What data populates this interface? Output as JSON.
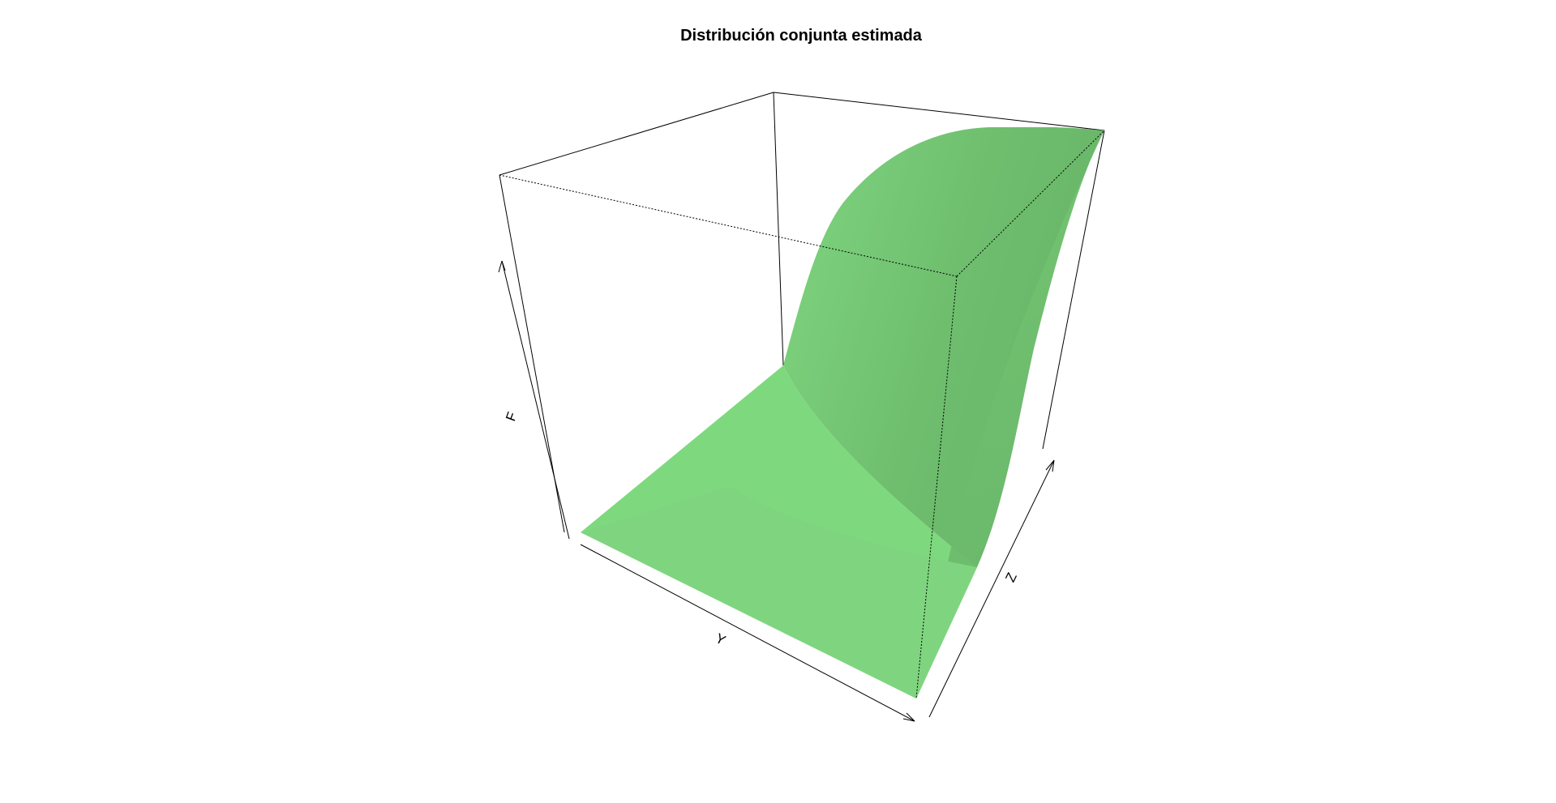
{
  "chart_data": {
    "type": "surface",
    "title": "Distribución conjunta estimada",
    "xlabel": "Y",
    "ylabel": "Z",
    "zlabel": "F",
    "surface_color": "#7ED97E",
    "shaded_color": "#6BB56B",
    "ticks": "none",
    "description_of_shape": "smooth joint CDF rising from 0 to 1"
  }
}
